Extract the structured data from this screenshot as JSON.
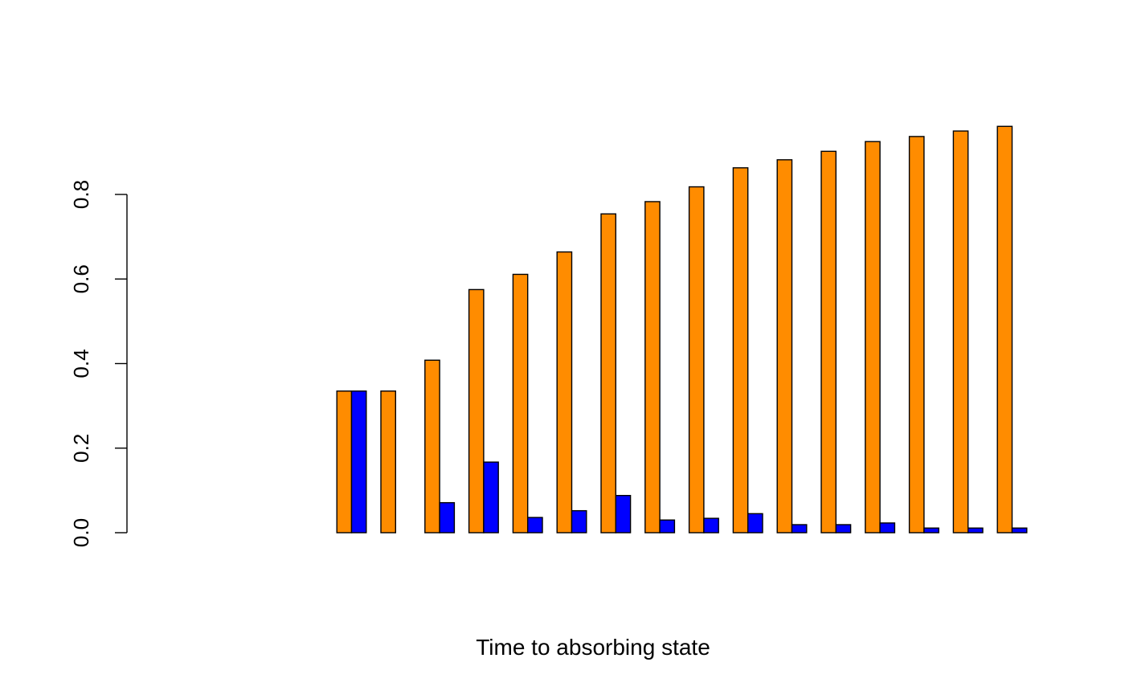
{
  "chart_data": {
    "type": "bar",
    "grouped": true,
    "xlabel": "Time to absorbing state",
    "ylabel": "",
    "ylim": [
      0,
      0.96
    ],
    "yticks": [
      0.0,
      0.2,
      0.4,
      0.6,
      0.8
    ],
    "ytick_labels": [
      "0.0",
      "0.2",
      "0.4",
      "0.6",
      "0.8"
    ],
    "grid": false,
    "show_x_tick_labels": false,
    "series": [
      {
        "color": "#FF8C00",
        "values": [
          0,
          0,
          0,
          0,
          0.335,
          0.335,
          0.408,
          0.575,
          0.611,
          0.664,
          0.754,
          0.783,
          0.818,
          0.863,
          0.882,
          0.902,
          0.925,
          0.937,
          0.95,
          0.961
        ]
      },
      {
        "color": "#0000FF",
        "values": [
          0,
          0,
          0,
          0,
          0.335,
          0,
          0.071,
          0.167,
          0.036,
          0.052,
          0.088,
          0.03,
          0.034,
          0.045,
          0.019,
          0.019,
          0.023,
          0.011,
          0.011,
          0.011
        ]
      }
    ]
  }
}
